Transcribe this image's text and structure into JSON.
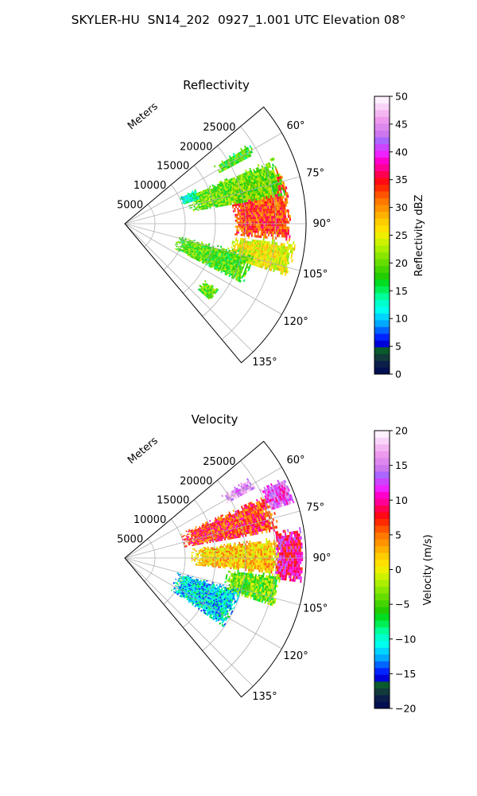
{
  "title": "SKYLER-HU  SN14_202  0927_1.001 UTC Elevation 08°",
  "chart_data": [
    {
      "type": "heatmap",
      "title": "Reflectivity",
      "ylabel": "Meters",
      "angle_range_deg": [
        50,
        140
      ],
      "range_max_m": 30000,
      "range_ticks": [
        5000,
        10000,
        15000,
        20000,
        25000
      ],
      "angle_ticks": [
        "60°",
        "75°",
        "90°",
        "105°",
        "120°",
        "135°"
      ],
      "grid": true,
      "colorbar": {
        "label": "Reflectivity dBZ",
        "range": [
          0,
          50
        ],
        "ticks": [
          0,
          5,
          10,
          15,
          20,
          25,
          30,
          35,
          40,
          45,
          50
        ],
        "palette": [
          "#001050",
          "#0b1e4a",
          "#123a3a",
          "#0a5a2c",
          "#0000d8",
          "#0024ff",
          "#0064ff",
          "#00a8ff",
          "#00d4ff",
          "#00ffee",
          "#00ffcc",
          "#00ff99",
          "#00ee55",
          "#00dd22",
          "#22cc00",
          "#44d400",
          "#66dd00",
          "#88e600",
          "#aaee00",
          "#ccf200",
          "#eeee00",
          "#ffe000",
          "#ffcc00",
          "#ffb000",
          "#ff9400",
          "#ff7800",
          "#ff5400",
          "#ff2a00",
          "#ff0a14",
          "#ff0050",
          "#ff0096",
          "#ff00cc",
          "#ee22ff",
          "#cc44ff",
          "#aa66ff",
          "#cc77ee",
          "#dd88ee",
          "#ee99ee",
          "#f4b6f2",
          "#fad4f8",
          "#fff0ff"
        ],
        "series_note": ""
      },
      "echo_regions": [
        {
          "name": "main-echo-core",
          "az": [
            70,
            96
          ],
          "range_m": [
            18000,
            27500
          ],
          "value": 33
        },
        {
          "name": "main-echo-south",
          "az": [
            96,
            108
          ],
          "range_m": [
            18000,
            28500
          ],
          "value": 25
        },
        {
          "name": "echo-band-75",
          "az": [
            66,
            80
          ],
          "range_m": [
            11000,
            27000
          ],
          "value": 20
        },
        {
          "name": "echo-west-patch",
          "az": [
            64,
            72
          ],
          "range_m": [
            10000,
            13000
          ],
          "value": 13
        },
        {
          "name": "echo-north-cell",
          "az": [
            57,
            62
          ],
          "range_m": [
            17500,
            24500
          ],
          "value": 18
        },
        {
          "name": "echo-scatter-110",
          "az": [
            103,
            117
          ],
          "range_m": [
            9000,
            22000
          ],
          "value": 19
        },
        {
          "name": "echo-scatter-130",
          "az": [
            125,
            132
          ],
          "range_m": [
            16000,
            19000
          ],
          "value": 19
        }
      ]
    },
    {
      "type": "heatmap",
      "title": "Velocity",
      "ylabel": "Meters",
      "angle_range_deg": [
        50,
        140
      ],
      "range_max_m": 30000,
      "range_ticks": [
        5000,
        10000,
        15000,
        20000,
        25000
      ],
      "angle_ticks": [
        "60°",
        "75°",
        "90°",
        "105°",
        "120°",
        "135°"
      ],
      "grid": true,
      "colorbar": {
        "label": "Velocity (m/s)",
        "range": [
          -20,
          20
        ],
        "ticks": [
          -20,
          -15,
          -10,
          -5,
          0,
          5,
          10,
          15,
          20
        ],
        "palette": [
          "#001050",
          "#0b1e4a",
          "#123a3a",
          "#0a5a2c",
          "#0000d8",
          "#0024ff",
          "#0064ff",
          "#00a8ff",
          "#00d4ff",
          "#00ffee",
          "#00ffcc",
          "#00ff99",
          "#00ee55",
          "#00dd22",
          "#22cc00",
          "#44d400",
          "#66dd00",
          "#88e600",
          "#aaee00",
          "#ccf200",
          "#eeee00",
          "#ffe000",
          "#ffcc00",
          "#ffb000",
          "#ff9400",
          "#ff7800",
          "#ff5400",
          "#ff2a00",
          "#ff0a14",
          "#ff0050",
          "#ff0096",
          "#ff00cc",
          "#ee22ff",
          "#cc44ff",
          "#aa66ff",
          "#cc77ee",
          "#dd88ee",
          "#ee99ee",
          "#f4b6f2",
          "#fad4f8",
          "#fff0ff"
        ]
      },
      "echo_regions": [
        {
          "name": "vel-core-yellow",
          "az": [
            82,
            96
          ],
          "range_m": [
            11000,
            26000
          ],
          "value": 2
        },
        {
          "name": "vel-band-orange",
          "az": [
            66,
            80
          ],
          "range_m": [
            10000,
            26000
          ],
          "value": 7
        },
        {
          "name": "vel-edge-red",
          "az": [
            80,
            98
          ],
          "range_m": [
            25000,
            29500
          ],
          "value": 10
        },
        {
          "name": "vel-magenta-60",
          "az": [
            63,
            72
          ],
          "range_m": [
            25000,
            29500
          ],
          "value": 13
        },
        {
          "name": "vel-purple-north",
          "az": [
            57,
            62
          ],
          "range_m": [
            19000,
            24500
          ],
          "value": 16
        },
        {
          "name": "vel-green-south",
          "az": [
            96,
            108
          ],
          "range_m": [
            17000,
            26000
          ],
          "value": -4
        },
        {
          "name": "vel-cyan-scatter",
          "az": [
            105,
            125
          ],
          "range_m": [
            9000,
            20000
          ],
          "value": -11
        }
      ]
    }
  ]
}
